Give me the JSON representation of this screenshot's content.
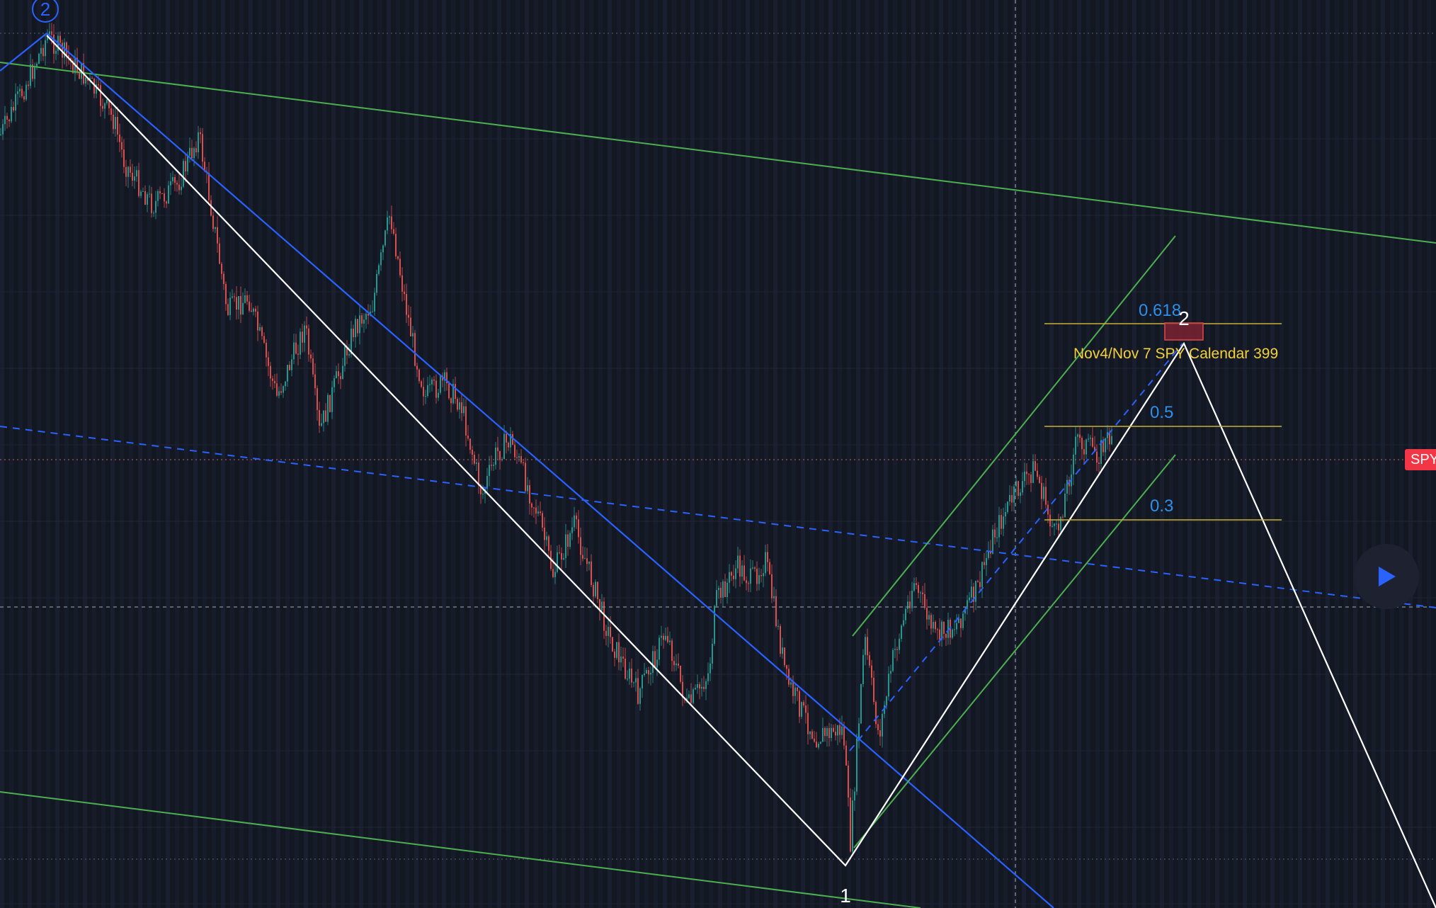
{
  "chart": {
    "symbol_badge": "SPY",
    "wave_labels": {
      "top_left": "2",
      "bottom": "1",
      "projection": "2"
    },
    "fib_levels": [
      {
        "label": "0.618",
        "value": 0.618
      },
      {
        "label": "0.5",
        "value": 0.5
      },
      {
        "label": "0.3",
        "value": 0.3
      }
    ],
    "annotation": "Nov4/Nov 7 SPY Calendar 399",
    "colors": {
      "background": "#131722",
      "up_candle": "#26a69a",
      "down_candle": "#ef5350",
      "trend_blue": "#2962ff",
      "channel_green": "#4caf50",
      "fib_line": "#c9b037",
      "fib_text": "#2f8fe8",
      "annotation_text": "#f4d03f",
      "badge": "#f23645"
    }
  },
  "controls": {
    "play_icon": "play-icon"
  }
}
